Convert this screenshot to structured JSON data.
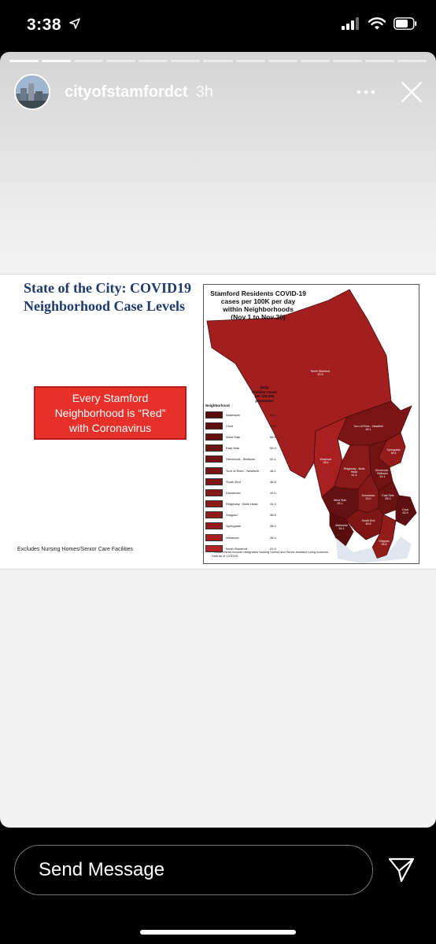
{
  "status_bar": {
    "time": "3:38",
    "icons": [
      "location-arrow-icon",
      "cellular-signal-icon",
      "wifi-icon",
      "battery-icon"
    ]
  },
  "story": {
    "progress": {
      "total_segments": 13,
      "completed_segments": 2
    },
    "username": "cityofstamfordct",
    "time_ago": "3h",
    "icons": [
      "more-options-icon",
      "close-icon"
    ]
  },
  "slide": {
    "title_line1": "State of the City: COVID19",
    "title_line2": "Neighborhood Case Levels",
    "red_box_line1": "Every Stamford",
    "red_box_line2": "Neighborhood is “Red”",
    "red_box_line3": "with Coronavirus",
    "footnote": "Excludes Nursing Homes/Senior Care Facilities",
    "map": {
      "title_line1": "Stamford Residents COVID-19",
      "title_line2": "cases per 100K per day",
      "title_line3": "within Neighborhoods",
      "title_line4": "(Nov 1 to Nov 30)",
      "legend_col_neighborhood": "Neighborhood",
      "legend_col_rate_line1": "Daily",
      "legend_col_rate_line2": "Positive Cases",
      "legend_col_rate_line3": "per 100,000",
      "legend_col_rate_line4": "population",
      "legend": [
        {
          "name": "Waterside",
          "value": "64.1",
          "color": "#5a0d0d"
        },
        {
          "name": "Cove",
          "value": "63.9",
          "color": "#5f0f0f"
        },
        {
          "name": "West Side",
          "value": "56.1",
          "color": "#661111"
        },
        {
          "name": "East Side",
          "value": "55.3",
          "color": "#6b1212"
        },
        {
          "name": "Glenbrook - Belltown",
          "value": "52.1",
          "color": "#711313"
        },
        {
          "name": "Turn of River - Newfield",
          "value": "48.1",
          "color": "#7a1515"
        },
        {
          "name": "South End",
          "value": "46.5",
          "color": "#7f1616"
        },
        {
          "name": "Downtown",
          "value": "43.0",
          "color": "#851818"
        },
        {
          "name": "Ridgeway - Bulls Head",
          "value": "41.4",
          "color": "#8a1919"
        },
        {
          "name": "Shippan",
          "value": "38.5",
          "color": "#921b1b"
        },
        {
          "name": "Springdale",
          "value": "38.4",
          "color": "#951c1c"
        },
        {
          "name": "Westover",
          "value": "28.4",
          "color": "#a82020"
        },
        {
          "name": "North Stamford",
          "value": "22.9",
          "color": "#b52424"
        }
      ],
      "region_labels": {
        "north_stamford": "North Stamford",
        "north_stamford_val": "22.9",
        "turn_of_river": "Turn of River - Newfield",
        "turn_of_river_val": "48.1",
        "westover": "Westover",
        "westover_val": "28.4",
        "springdale": "Springdale",
        "springdale_val": "38.4",
        "ridgeway": "Ridgeway - Bulls Head",
        "ridgeway_val": "41.4",
        "glenbrook": "Glenbrook - Belltown",
        "glenbrook_val": "52.1",
        "west_side": "West Side",
        "west_side_val": "56.1",
        "downtown": "Downtown",
        "downtown_val": "43.0",
        "east_side": "East Side",
        "east_side_val": "55.3",
        "cove": "Cove",
        "cove_val": "63.9",
        "waterside": "Waterside",
        "waterside_val": "64.1",
        "south_end": "South End",
        "south_end_val": "46.5",
        "shippan": "Shippan",
        "shippan_val": "38.5"
      },
      "footnote_line1": "* These results exclude designated Nursing Homes and Senior Assisted Living locations.",
      "footnote_line2": "Data as of 11/30/20."
    }
  },
  "reply": {
    "placeholder": "Send Message",
    "send_icon": "send-paper-plane-icon"
  }
}
